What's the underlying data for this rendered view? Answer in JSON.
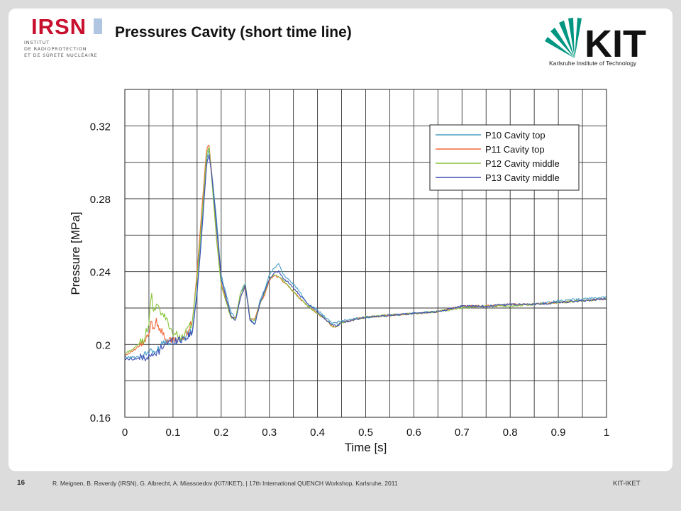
{
  "slide": {
    "title": "Pressures Cavity (short time line)",
    "page_number": "16",
    "footer_text": "R. Meignen, B. Raverdy (IRSN), G. Albrecht, A. Miassoedov (KIT/IKET),  | 17th International QUENCH Workshop, Karlsruhe, 2011",
    "footer_right": "KIT-IKET"
  },
  "logos": {
    "irsn": {
      "mark": "IRSN",
      "lines": [
        "INSTITUT",
        "DE RADIOPROTECTION",
        "ET DE SÛRETÉ NUCLÉAIRE"
      ],
      "color": "#c8102e"
    },
    "kit": {
      "mark": "KIT",
      "subtitle": "Karlsruhe Institute of Technology",
      "color": "#009682"
    }
  },
  "chart_data": {
    "type": "line",
    "title": "",
    "xlabel": "Time [s]",
    "ylabel": "Pressure [MPa]",
    "xlim": [
      0,
      1
    ],
    "ylim": [
      0.16,
      0.34
    ],
    "xticks": [
      0,
      0.1,
      0.2,
      0.3,
      0.4,
      0.5,
      0.6,
      0.7,
      0.8,
      0.9,
      1
    ],
    "xtick_labels": [
      "0",
      "0.1",
      "0.2",
      "0.3",
      "0.4",
      "0.5",
      "0.6",
      "0.7",
      "0.8",
      "0.9",
      "1"
    ],
    "yticks": [
      0.16,
      0.2,
      0.24,
      0.28,
      0.32
    ],
    "ytick_labels": [
      "0.16",
      "0.2",
      "0.24",
      "0.28",
      "0.32"
    ],
    "grid": true,
    "legend_position": "top-right",
    "series": [
      {
        "name": "P10 Cavity top",
        "color": "#4a9fc4",
        "x": [
          0,
          0.02,
          0.04,
          0.05,
          0.055,
          0.06,
          0.07,
          0.08,
          0.09,
          0.1,
          0.12,
          0.14,
          0.15,
          0.16,
          0.17,
          0.175,
          0.18,
          0.19,
          0.2,
          0.22,
          0.23,
          0.24,
          0.25,
          0.26,
          0.27,
          0.28,
          0.29,
          0.3,
          0.31,
          0.32,
          0.33,
          0.34,
          0.36,
          0.38,
          0.4,
          0.42,
          0.43,
          0.44,
          0.45,
          0.5,
          0.55,
          0.6,
          0.65,
          0.7,
          0.75,
          0.8,
          0.85,
          0.9,
          0.95,
          1.0
        ],
        "y": [
          0.193,
          0.193,
          0.194,
          0.196,
          0.198,
          0.194,
          0.198,
          0.202,
          0.202,
          0.202,
          0.203,
          0.207,
          0.23,
          0.265,
          0.302,
          0.307,
          0.295,
          0.27,
          0.238,
          0.218,
          0.214,
          0.228,
          0.234,
          0.214,
          0.211,
          0.224,
          0.23,
          0.238,
          0.242,
          0.244,
          0.238,
          0.236,
          0.23,
          0.222,
          0.219,
          0.214,
          0.212,
          0.212,
          0.213,
          0.215,
          0.216,
          0.217,
          0.218,
          0.221,
          0.221,
          0.222,
          0.222,
          0.224,
          0.225,
          0.226
        ]
      },
      {
        "name": "P11 Cavity top",
        "color": "#f06a3a",
        "x": [
          0,
          0.02,
          0.04,
          0.05,
          0.055,
          0.06,
          0.065,
          0.07,
          0.08,
          0.09,
          0.1,
          0.12,
          0.14,
          0.15,
          0.16,
          0.17,
          0.175,
          0.18,
          0.19,
          0.2,
          0.22,
          0.23,
          0.24,
          0.25,
          0.26,
          0.27,
          0.28,
          0.29,
          0.3,
          0.31,
          0.32,
          0.33,
          0.34,
          0.36,
          0.38,
          0.4,
          0.42,
          0.43,
          0.44,
          0.45,
          0.5,
          0.55,
          0.6,
          0.65,
          0.7,
          0.75,
          0.8,
          0.85,
          0.9,
          0.95,
          1.0
        ],
        "y": [
          0.194,
          0.197,
          0.201,
          0.205,
          0.213,
          0.208,
          0.214,
          0.21,
          0.205,
          0.202,
          0.202,
          0.203,
          0.212,
          0.24,
          0.275,
          0.308,
          0.31,
          0.295,
          0.26,
          0.234,
          0.215,
          0.214,
          0.226,
          0.232,
          0.214,
          0.214,
          0.222,
          0.227,
          0.235,
          0.238,
          0.237,
          0.234,
          0.232,
          0.226,
          0.221,
          0.217,
          0.213,
          0.21,
          0.21,
          0.212,
          0.215,
          0.216,
          0.217,
          0.218,
          0.221,
          0.221,
          0.222,
          0.222,
          0.223,
          0.224,
          0.225
        ]
      },
      {
        "name": "P12 Cavity middle",
        "color": "#8cc63f",
        "x": [
          0,
          0.02,
          0.04,
          0.05,
          0.055,
          0.06,
          0.065,
          0.07,
          0.08,
          0.09,
          0.1,
          0.12,
          0.14,
          0.15,
          0.16,
          0.17,
          0.175,
          0.18,
          0.19,
          0.2,
          0.22,
          0.23,
          0.24,
          0.25,
          0.26,
          0.27,
          0.28,
          0.29,
          0.3,
          0.31,
          0.32,
          0.33,
          0.34,
          0.36,
          0.38,
          0.4,
          0.42,
          0.43,
          0.44,
          0.45,
          0.5,
          0.55,
          0.6,
          0.65,
          0.7,
          0.75,
          0.8,
          0.85,
          0.9,
          0.95,
          1.0
        ],
        "y": [
          0.195,
          0.198,
          0.203,
          0.212,
          0.228,
          0.216,
          0.222,
          0.219,
          0.216,
          0.212,
          0.206,
          0.204,
          0.212,
          0.236,
          0.27,
          0.305,
          0.308,
          0.293,
          0.258,
          0.232,
          0.215,
          0.214,
          0.228,
          0.233,
          0.214,
          0.213,
          0.222,
          0.228,
          0.236,
          0.238,
          0.237,
          0.235,
          0.232,
          0.226,
          0.221,
          0.217,
          0.213,
          0.21,
          0.21,
          0.212,
          0.215,
          0.216,
          0.217,
          0.218,
          0.22,
          0.221,
          0.221,
          0.222,
          0.223,
          0.224,
          0.225
        ]
      },
      {
        "name": "P13 Cavity middle",
        "color": "#3c4fb5",
        "x": [
          0,
          0.02,
          0.04,
          0.05,
          0.06,
          0.07,
          0.08,
          0.09,
          0.1,
          0.12,
          0.14,
          0.15,
          0.16,
          0.17,
          0.175,
          0.18,
          0.19,
          0.2,
          0.22,
          0.23,
          0.24,
          0.25,
          0.26,
          0.27,
          0.28,
          0.29,
          0.3,
          0.31,
          0.32,
          0.33,
          0.34,
          0.36,
          0.38,
          0.4,
          0.42,
          0.43,
          0.44,
          0.45,
          0.5,
          0.55,
          0.6,
          0.65,
          0.7,
          0.75,
          0.8,
          0.85,
          0.9,
          0.95,
          1.0
        ],
        "y": [
          0.192,
          0.192,
          0.193,
          0.193,
          0.194,
          0.196,
          0.2,
          0.201,
          0.202,
          0.203,
          0.206,
          0.228,
          0.262,
          0.3,
          0.304,
          0.294,
          0.266,
          0.236,
          0.216,
          0.213,
          0.226,
          0.232,
          0.213,
          0.211,
          0.222,
          0.229,
          0.236,
          0.239,
          0.24,
          0.236,
          0.234,
          0.228,
          0.222,
          0.218,
          0.213,
          0.211,
          0.21,
          0.212,
          0.215,
          0.216,
          0.217,
          0.218,
          0.221,
          0.221,
          0.222,
          0.222,
          0.223,
          0.224,
          0.225
        ]
      }
    ]
  }
}
